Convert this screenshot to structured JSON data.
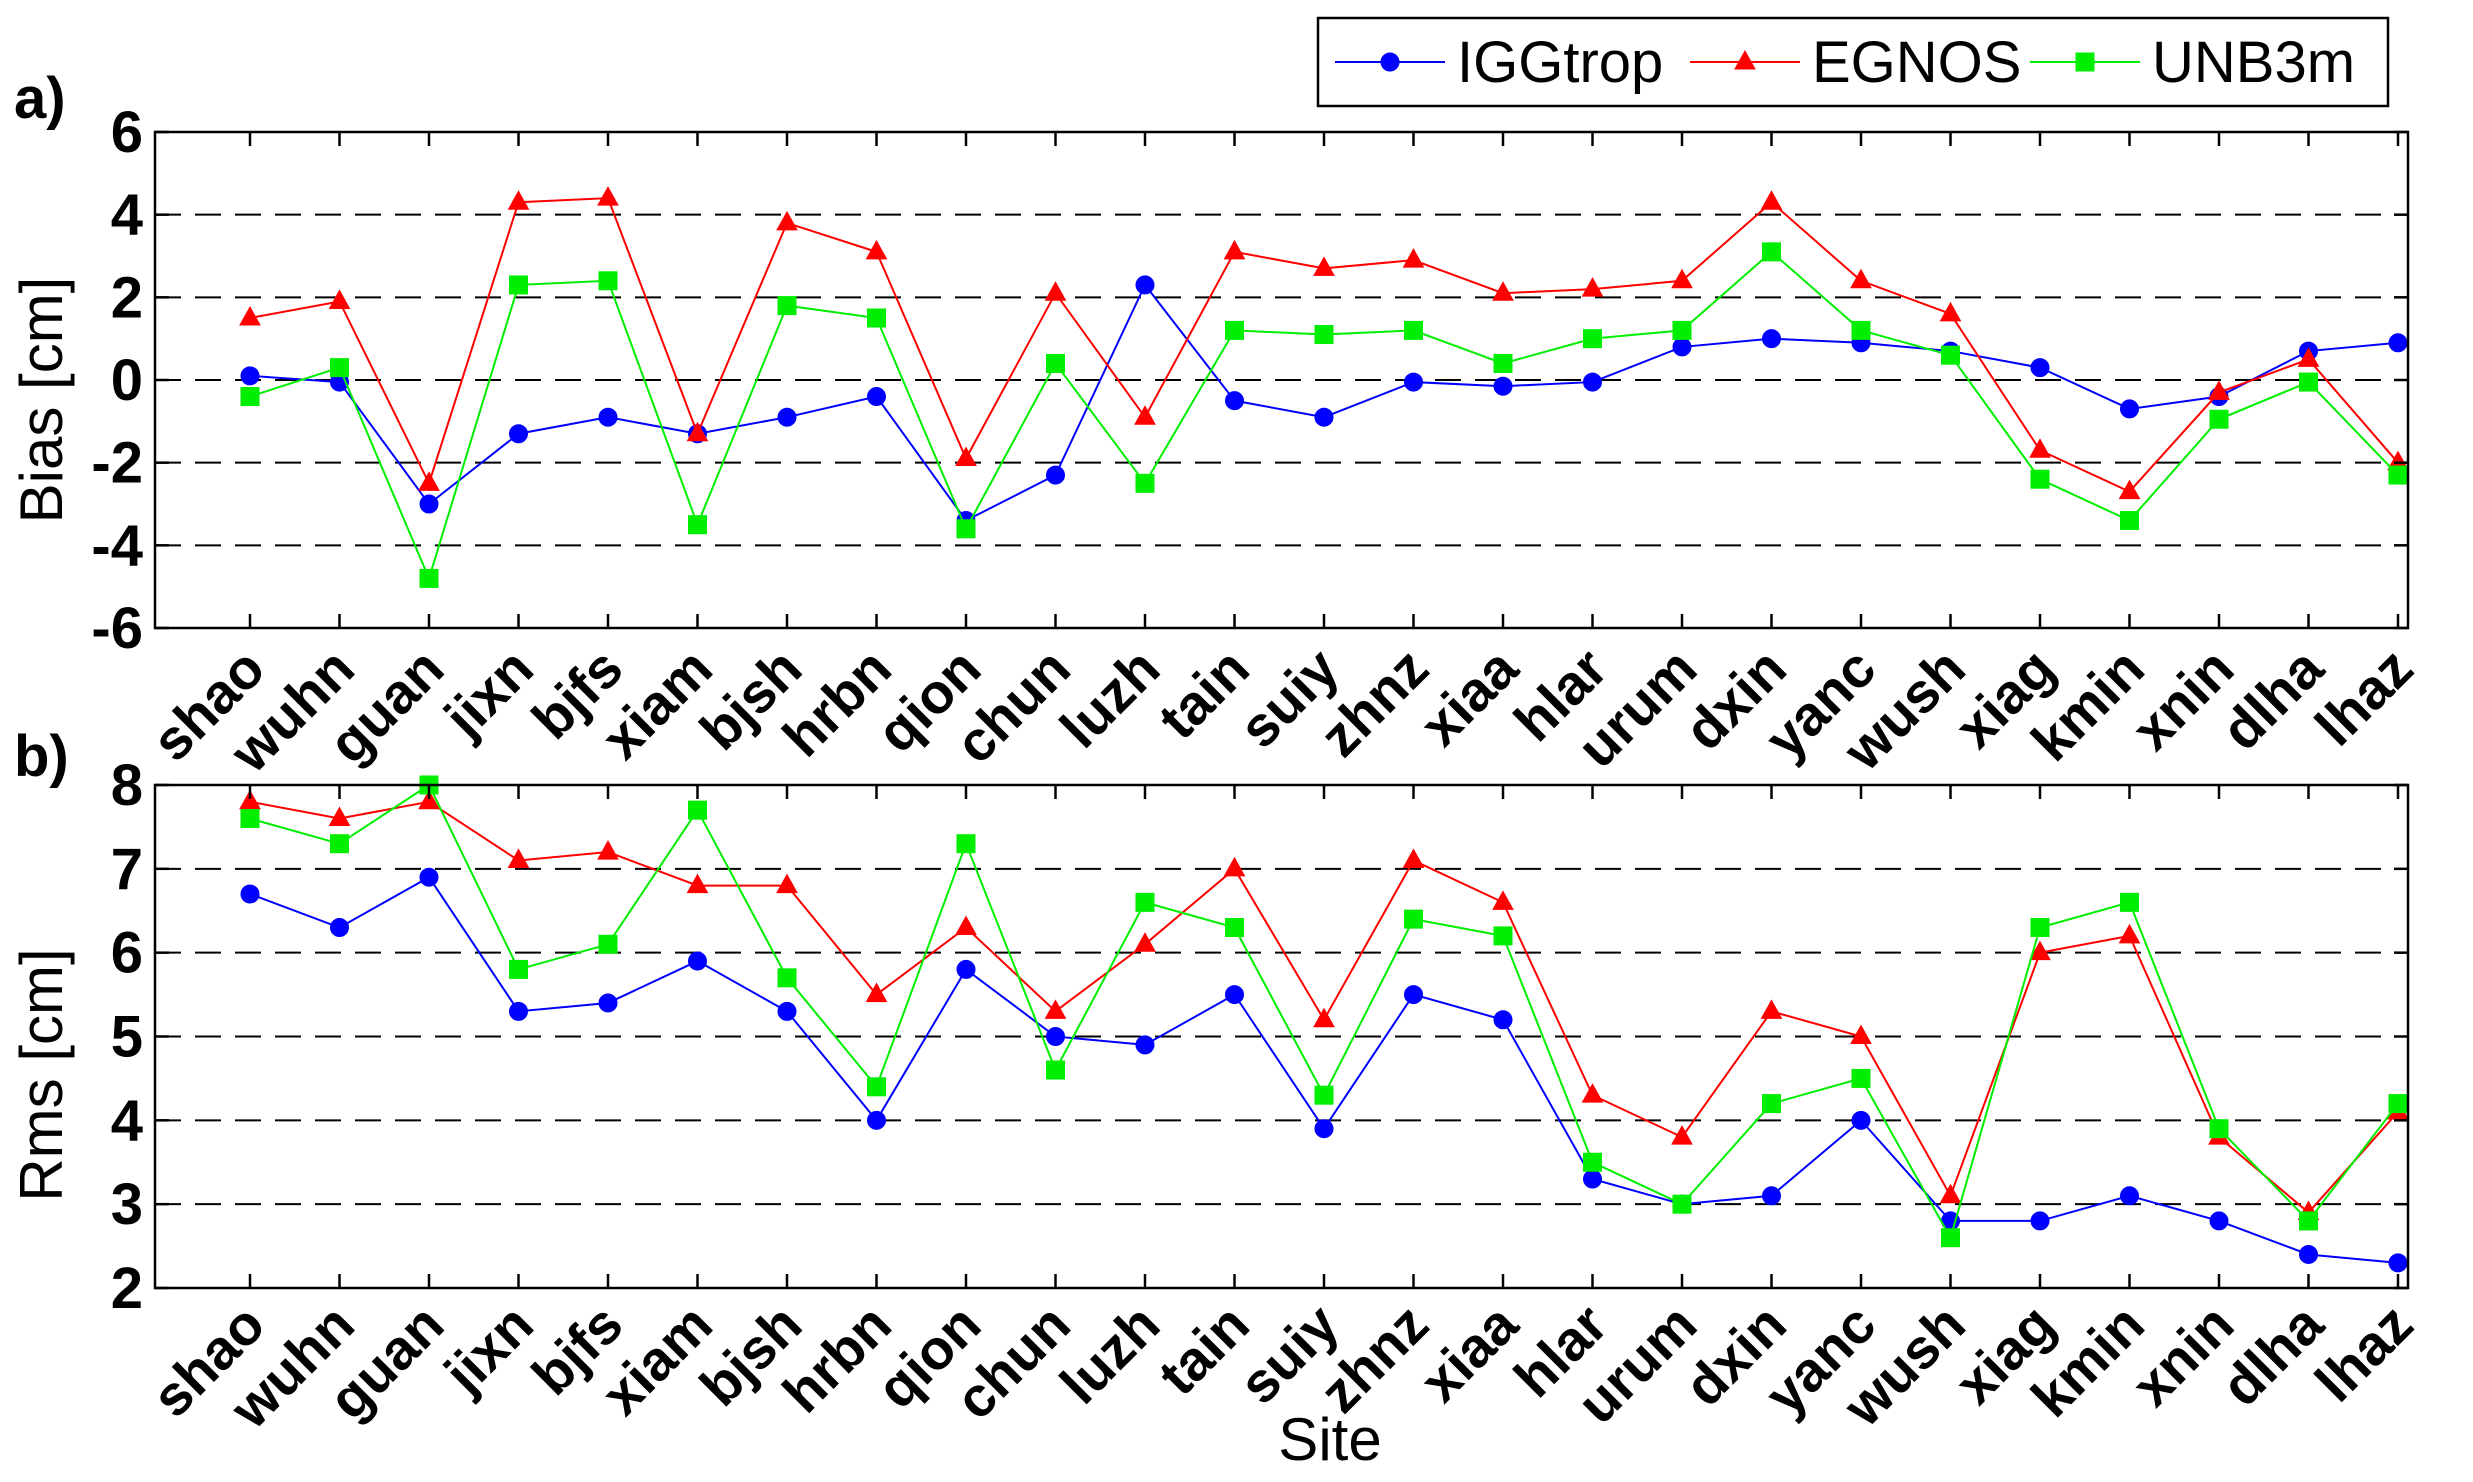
{
  "legend": {
    "entries": [
      {
        "name": "IGGtrop",
        "color": "#0000ff",
        "marker": "circle"
      },
      {
        "name": "EGNOS",
        "color": "#ff0000",
        "marker": "triangle"
      },
      {
        "name": "UNB3m",
        "color": "#00ee00",
        "marker": "square"
      }
    ]
  },
  "xlabel": "Site",
  "chart_data": [
    {
      "type": "line",
      "panel": "a)",
      "ylabel": "Bias [cm]",
      "ylim": [
        -6,
        6
      ],
      "yticks": [
        -6,
        -4,
        -2,
        0,
        2,
        4,
        6
      ],
      "grid": "horizontal dashed",
      "categories": [
        "shao",
        "wuhn",
        "guan",
        "jixn",
        "bjfs",
        "xiam",
        "bjsh",
        "hrbn",
        "qion",
        "chun",
        "luzh",
        "tain",
        "suiy",
        "zhnz",
        "xiaa",
        "hlar",
        "urum",
        "dxin",
        "yanc",
        "wush",
        "xiag",
        "kmin",
        "xnin",
        "dlha",
        "lhaz"
      ],
      "series": [
        {
          "name": "IGGtrop",
          "values": [
            0.1,
            -0.05,
            -3.0,
            -1.3,
            -0.9,
            -1.3,
            -0.9,
            -0.4,
            -3.4,
            -2.3,
            2.3,
            -0.5,
            -0.9,
            -0.05,
            -0.15,
            -0.05,
            0.8,
            1.0,
            0.9,
            0.7,
            0.3,
            -0.7,
            -0.4,
            0.7,
            0.9
          ]
        },
        {
          "name": "EGNOS",
          "values": [
            1.5,
            1.9,
            -2.5,
            4.3,
            4.4,
            -1.3,
            3.8,
            3.1,
            -1.9,
            2.1,
            -0.9,
            3.1,
            2.7,
            2.9,
            2.1,
            2.2,
            2.4,
            4.3,
            2.4,
            1.6,
            -1.7,
            -2.7,
            -0.3,
            0.5,
            -2.0
          ]
        },
        {
          "name": "UNB3m",
          "values": [
            -0.4,
            0.3,
            -4.8,
            2.3,
            2.4,
            -3.5,
            1.8,
            1.5,
            -3.6,
            0.4,
            -2.5,
            1.2,
            1.1,
            1.2,
            0.4,
            1.0,
            1.2,
            3.1,
            1.2,
            0.6,
            -2.4,
            -3.4,
            -0.95,
            -0.05,
            -2.3
          ]
        }
      ]
    },
    {
      "type": "line",
      "panel": "b)",
      "ylabel": "Rms [cm]",
      "ylim": [
        2,
        8
      ],
      "yticks": [
        2,
        3,
        4,
        5,
        6,
        7,
        8
      ],
      "grid": "horizontal dashed",
      "categories": [
        "shao",
        "wuhn",
        "guan",
        "jixn",
        "bjfs",
        "xiam",
        "bjsh",
        "hrbn",
        "qion",
        "chun",
        "luzh",
        "tain",
        "suiy",
        "zhnz",
        "xiaa",
        "hlar",
        "urum",
        "dxin",
        "yanc",
        "wush",
        "xiag",
        "kmin",
        "xnin",
        "dlha",
        "lhaz"
      ],
      "series": [
        {
          "name": "IGGtrop",
          "values": [
            6.7,
            6.3,
            6.9,
            5.3,
            5.4,
            5.9,
            5.3,
            4.0,
            5.8,
            5.0,
            4.9,
            5.5,
            3.9,
            5.5,
            5.2,
            3.3,
            3.0,
            3.1,
            4.0,
            2.8,
            2.8,
            3.1,
            2.8,
            2.4,
            2.3
          ]
        },
        {
          "name": "EGNOS",
          "values": [
            7.8,
            7.6,
            7.8,
            7.1,
            7.2,
            6.8,
            6.8,
            5.5,
            6.3,
            5.3,
            6.1,
            7.0,
            5.2,
            7.1,
            6.6,
            4.3,
            3.8,
            5.3,
            5.0,
            3.1,
            6.0,
            6.2,
            3.8,
            2.9,
            4.1
          ]
        },
        {
          "name": "UNB3m",
          "values": [
            7.6,
            7.3,
            8.0,
            5.8,
            6.1,
            7.7,
            5.7,
            4.4,
            7.3,
            4.6,
            6.6,
            6.3,
            4.3,
            6.4,
            6.2,
            3.5,
            3.0,
            4.2,
            4.5,
            2.6,
            6.3,
            6.6,
            3.9,
            2.8,
            4.2
          ]
        }
      ]
    }
  ]
}
